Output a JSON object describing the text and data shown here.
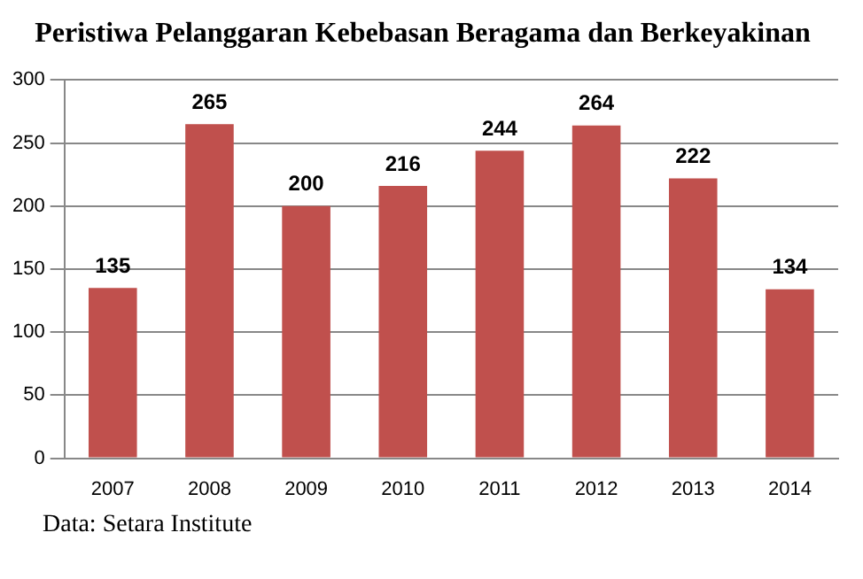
{
  "chart_data": {
    "type": "bar",
    "title": "Peristiwa Pelanggaran Kebebasan Beragama dan Berkeyakinan",
    "categories": [
      "2007",
      "2008",
      "2009",
      "2010",
      "2011",
      "2012",
      "2013",
      "2014"
    ],
    "values": [
      135,
      265,
      200,
      216,
      244,
      264,
      222,
      134
    ],
    "color": "#c0504d",
    "ylim": [
      0,
      300
    ],
    "yticks": [
      0,
      50,
      100,
      150,
      200,
      250,
      300
    ],
    "grid": "y",
    "data_labels": true,
    "annotations": [
      "Data: Setara Institute"
    ]
  }
}
